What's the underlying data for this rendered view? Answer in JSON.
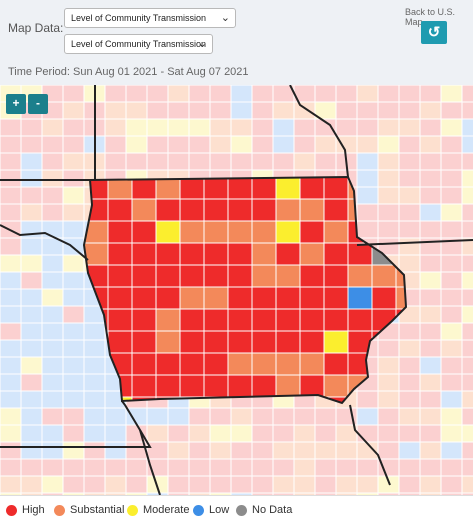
{
  "filters": {
    "map_data_label": "Map Data:",
    "select_1_value": "Level of Community Transmission",
    "select_2_value": "Level of Community Transmission"
  },
  "back": {
    "text": "Back to U.S. Map",
    "icon": "undo-arrow-icon"
  },
  "time_period": "Time Period: Sun Aug 01 2021 - Sat Aug 07 2021",
  "zoom": {
    "in_label": "+",
    "out_label": "-"
  },
  "colors": {
    "high": "#ee2b2b",
    "substantial": "#f3895a",
    "moderate": "#fbee2e",
    "low": "#3d8ee6",
    "no_data": "#8c8c8c",
    "light_high": "#fbd0d0",
    "light_substantial": "#fde0cf",
    "light_moderate": "#fdf8cf",
    "light_low": "#d4e6fb",
    "border": "#ffffff",
    "state_border": "#222222"
  },
  "legend": [
    {
      "label": "High",
      "color_key": "high"
    },
    {
      "label": "Substantial",
      "color_key": "substantial"
    },
    {
      "label": "Moderate",
      "color_key": "moderate"
    },
    {
      "label": "Low",
      "color_key": "low"
    },
    {
      "label": "No Data",
      "color_key": "no_data"
    }
  ]
}
